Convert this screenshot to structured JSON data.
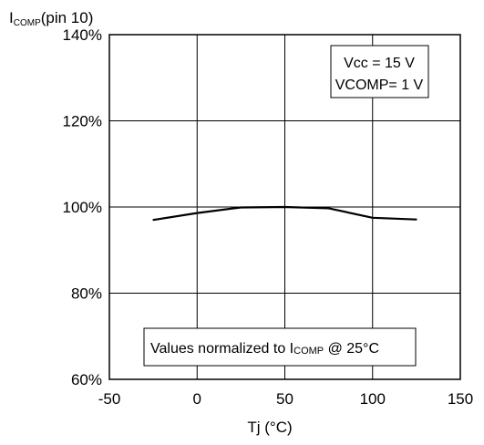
{
  "chart_data": {
    "type": "line",
    "ylabel_main": "I",
    "ylabel_sub": "COMP",
    "ylabel_suffix": "(pin 10)",
    "xlabel": "Tj  (°C)",
    "xlim": [
      -50,
      150
    ],
    "ylim": [
      60,
      140
    ],
    "grid": true,
    "x_ticks": [
      -50,
      0,
      50,
      100,
      150
    ],
    "x_tick_labels": [
      "-50",
      "0",
      "50",
      "100",
      "150"
    ],
    "y_ticks": [
      60,
      80,
      100,
      120,
      140
    ],
    "y_tick_labels": [
      "60%",
      "80%",
      "100%",
      "120%",
      "140%"
    ],
    "series": [
      {
        "x": [
          -25,
          0,
          25,
          50,
          75,
          100,
          125
        ],
        "y": [
          97,
          98.6,
          99.9,
          100,
          99.7,
          97.5,
          97.1
        ]
      }
    ],
    "annotations": {
      "conditions": [
        "Vcc = 15 V",
        "VCOMP= 1 V"
      ],
      "note_prefix": "Values normalized to I",
      "note_sub": "COMP",
      "note_suffix": "  @ 25°C"
    }
  }
}
